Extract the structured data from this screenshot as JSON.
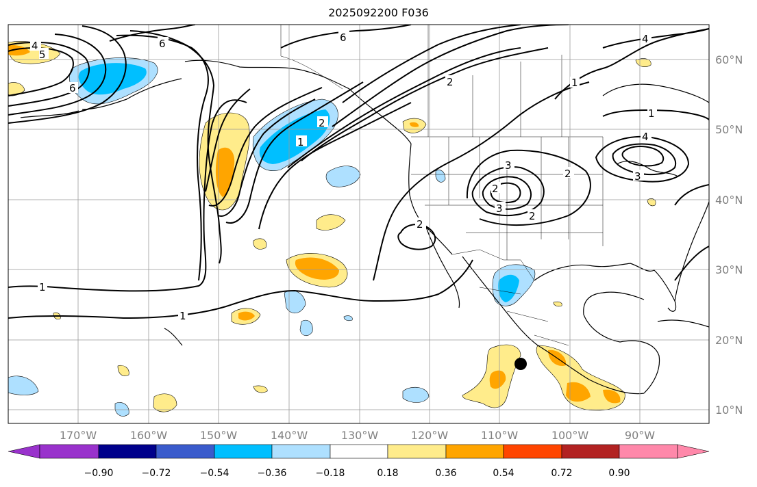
{
  "title": "2025092200 F036",
  "latitude_labels": [
    "60°N",
    "50°N",
    "40°N",
    "30°N",
    "20°N",
    "10°N"
  ],
  "longitude_labels": [
    "170°W",
    "160°W",
    "150°W",
    "140°W",
    "130°W",
    "120°W",
    "110°W",
    "100°W",
    "90°W"
  ],
  "colorbar": {
    "ticks": [
      "−0.90",
      "−0.72",
      "−0.54",
      "−0.36",
      "−0.18",
      "0.18",
      "0.36",
      "0.54",
      "0.72",
      "0.90"
    ],
    "colors": [
      "#9932cc",
      "#00008b",
      "#3a5bcc",
      "#00bfff",
      "#aee0ff",
      "#ffffff",
      "#ffec8b",
      "#ffa500",
      "#ff4500",
      "#b22222",
      "#ff88aa"
    ]
  },
  "contour_labels": [
    "6",
    "4",
    "5",
    "1",
    "6",
    "2",
    "1",
    "2",
    "1",
    "4",
    "3",
    "3",
    "2",
    "2",
    "3",
    "4",
    "2",
    "2",
    "1",
    "1",
    "6"
  ],
  "colors": {
    "land_line": "#000000",
    "grid": "#999999",
    "contour": "#000000",
    "storm_marker": "#000000"
  }
}
